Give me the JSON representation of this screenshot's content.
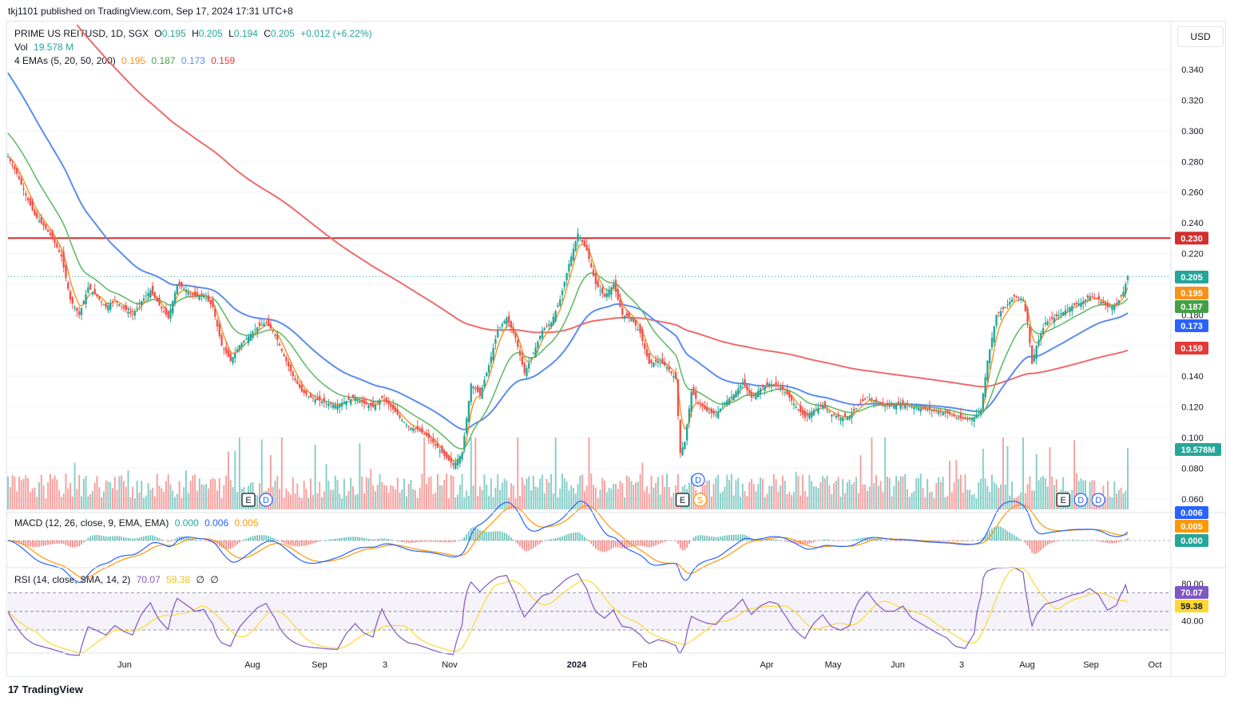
{
  "header": {
    "published": "tkj1101 published on TradingView.com, Sep 17, 2024 17:31 UTC+8"
  },
  "legend": {
    "symbol": "PRIME US REITUSD, 1D, SGX",
    "o_label": "O",
    "o": "0.195",
    "h_label": "H",
    "h": "0.205",
    "l_label": "L",
    "l": "0.194",
    "c_label": "C",
    "c": "0.205",
    "change": "+0.012 (+6.22%)",
    "vol_label": "Vol",
    "vol": "19.578 M",
    "ema_label": "4 EMAs (5, 20, 50, 200)",
    "ema5": "0.195",
    "ema20": "0.187",
    "ema50": "0.173",
    "ema200": "0.159",
    "macd_label": "MACD (12, 26, close, 9, EMA, EMA)",
    "macd_hist": "0.000",
    "macd_line": "0.006",
    "macd_signal": "0.005",
    "rsi_label": "RSI (14, close, SMA, 14, 2)",
    "rsi": "70.07",
    "rsi_ma": "59.38",
    "rsi_extra1": "∅",
    "rsi_extra2": "∅"
  },
  "currency_button": "USD",
  "brand": {
    "logo": "17",
    "name": "TradingView"
  },
  "colors": {
    "up": "#26a69a",
    "down": "#ef5350",
    "ema5": "#f7931a",
    "ema20": "#66bb6a",
    "ema50": "#5b8def",
    "ema200": "#ef6b6b",
    "hline": "#d32f2f",
    "macd": "#2962ff",
    "signal": "#ff9800",
    "rsi": "#7e57c2",
    "rsi_ma": "#fdd835"
  },
  "chart_data": [
    {
      "type": "candlestick",
      "title": "PRIME US REITUSD, 1D, SGX",
      "x_tick_labels": [
        "Jun",
        "Aug",
        "Sep",
        "3",
        "Nov",
        "2024",
        "Feb",
        "Apr",
        "May",
        "Jun",
        "3",
        "Aug",
        "Sep",
        "Oct"
      ],
      "y_tick_labels": [
        "0.340",
        "0.320",
        "0.300",
        "0.280",
        "0.260",
        "0.240",
        "0.220",
        "0.180",
        "0.140",
        "0.120",
        "0.100",
        "0.080",
        "0.060"
      ],
      "ylim": [
        0.052,
        0.352
      ],
      "close_anchors": [
        [
          0,
          0.283
        ],
        [
          4,
          0.272
        ],
        [
          8,
          0.258
        ],
        [
          12,
          0.245
        ],
        [
          16,
          0.238
        ],
        [
          20,
          0.23
        ],
        [
          24,
          0.218
        ],
        [
          28,
          0.19
        ],
        [
          32,
          0.18
        ],
        [
          36,
          0.198
        ],
        [
          40,
          0.192
        ],
        [
          44,
          0.185
        ],
        [
          48,
          0.19
        ],
        [
          52,
          0.184
        ],
        [
          56,
          0.18
        ],
        [
          60,
          0.189
        ],
        [
          64,
          0.196
        ],
        [
          68,
          0.186
        ],
        [
          72,
          0.178
        ],
        [
          76,
          0.2
        ],
        [
          80,
          0.196
        ],
        [
          84,
          0.192
        ],
        [
          88,
          0.193
        ],
        [
          92,
          0.185
        ],
        [
          96,
          0.16
        ],
        [
          100,
          0.15
        ],
        [
          104,
          0.16
        ],
        [
          108,
          0.166
        ],
        [
          112,
          0.172
        ],
        [
          116,
          0.175
        ],
        [
          120,
          0.167
        ],
        [
          124,
          0.153
        ],
        [
          128,
          0.14
        ],
        [
          132,
          0.13
        ],
        [
          136,
          0.126
        ],
        [
          140,
          0.124
        ],
        [
          144,
          0.122
        ],
        [
          148,
          0.121
        ],
        [
          152,
          0.124
        ],
        [
          156,
          0.126
        ],
        [
          160,
          0.122
        ],
        [
          164,
          0.12
        ],
        [
          168,
          0.126
        ],
        [
          172,
          0.12
        ],
        [
          176,
          0.113
        ],
        [
          180,
          0.107
        ],
        [
          184,
          0.105
        ],
        [
          188,
          0.101
        ],
        [
          192,
          0.095
        ],
        [
          196,
          0.088
        ],
        [
          200,
          0.082
        ],
        [
          204,
          0.09
        ],
        [
          208,
          0.135
        ],
        [
          212,
          0.128
        ],
        [
          216,
          0.147
        ],
        [
          220,
          0.17
        ],
        [
          224,
          0.178
        ],
        [
          228,
          0.165
        ],
        [
          232,
          0.142
        ],
        [
          236,
          0.155
        ],
        [
          240,
          0.17
        ],
        [
          244,
          0.175
        ],
        [
          248,
          0.19
        ],
        [
          252,
          0.213
        ],
        [
          256,
          0.233
        ],
        [
          260,
          0.222
        ],
        [
          264,
          0.2
        ],
        [
          268,
          0.192
        ],
        [
          272,
          0.2
        ],
        [
          276,
          0.18
        ],
        [
          280,
          0.178
        ],
        [
          284,
          0.168
        ],
        [
          288,
          0.148
        ],
        [
          292,
          0.15
        ],
        [
          296,
          0.146
        ],
        [
          300,
          0.138
        ],
        [
          302,
          0.09
        ],
        [
          304,
          0.097
        ],
        [
          307,
          0.13
        ],
        [
          310,
          0.123
        ],
        [
          314,
          0.117
        ],
        [
          318,
          0.115
        ],
        [
          322,
          0.123
        ],
        [
          326,
          0.128
        ],
        [
          330,
          0.136
        ],
        [
          334,
          0.126
        ],
        [
          338,
          0.132
        ],
        [
          342,
          0.135
        ],
        [
          346,
          0.134
        ],
        [
          350,
          0.128
        ],
        [
          354,
          0.12
        ],
        [
          358,
          0.113
        ],
        [
          362,
          0.118
        ],
        [
          366,
          0.121
        ],
        [
          370,
          0.115
        ],
        [
          374,
          0.113
        ],
        [
          378,
          0.114
        ],
        [
          382,
          0.121
        ],
        [
          386,
          0.126
        ],
        [
          390,
          0.123
        ],
        [
          394,
          0.121
        ],
        [
          398,
          0.121
        ],
        [
          402,
          0.122
        ],
        [
          406,
          0.12
        ],
        [
          410,
          0.119
        ],
        [
          414,
          0.118
        ],
        [
          418,
          0.117
        ],
        [
          422,
          0.116
        ],
        [
          426,
          0.113
        ],
        [
          430,
          0.112
        ],
        [
          434,
          0.113
        ],
        [
          437,
          0.118
        ],
        [
          440,
          0.15
        ],
        [
          444,
          0.18
        ],
        [
          448,
          0.185
        ],
        [
          452,
          0.192
        ],
        [
          456,
          0.19
        ],
        [
          458,
          0.175
        ],
        [
          460,
          0.148
        ],
        [
          462,
          0.16
        ],
        [
          466,
          0.175
        ],
        [
          470,
          0.178
        ],
        [
          474,
          0.182
        ],
        [
          478,
          0.186
        ],
        [
          482,
          0.188
        ],
        [
          486,
          0.192
        ],
        [
          490,
          0.19
        ],
        [
          494,
          0.185
        ],
        [
          498,
          0.187
        ],
        [
          501,
          0.195
        ],
        [
          503,
          0.205
        ]
      ],
      "ema_series": [
        {
          "name": "EMA 5",
          "last": 0.195
        },
        {
          "name": "EMA 20",
          "last": 0.187
        },
        {
          "name": "EMA 50",
          "last": 0.173
        },
        {
          "name": "EMA 200",
          "last": 0.159
        }
      ],
      "horizontal_line": 0.23,
      "last_close": 0.205,
      "price_labels": [
        "0.230",
        "0.205",
        "0.195",
        "0.187",
        "0.173",
        "0.159"
      ],
      "volume_last_label": "19.578M",
      "event_markers": [
        {
          "bar": 108,
          "labels": [
            "E",
            "D"
          ]
        },
        {
          "bar": 303,
          "labels": [
            "E",
            "S"
          ]
        },
        {
          "bar": 310,
          "labels": [
            "D"
          ]
        },
        {
          "bar": 474,
          "labels": [
            "E",
            "D",
            "D"
          ]
        }
      ]
    },
    {
      "type": "line",
      "title": "MACD (12, 26, close, 9, EMA, EMA)",
      "series": [
        {
          "name": "MACD",
          "last": 0.006
        },
        {
          "name": "Signal",
          "last": 0.005
        },
        {
          "name": "Histogram",
          "last": 0.0
        }
      ],
      "price_labels": [
        "0.006",
        "0.005",
        "0.000"
      ]
    },
    {
      "type": "line",
      "title": "RSI (14, close, SMA, 14, 2)",
      "ylim": [
        0,
        100
      ],
      "y_tick_labels": [
        "80.00",
        "40.00"
      ],
      "series": [
        {
          "name": "RSI",
          "last": 70.07
        },
        {
          "name": "RSI-based MA",
          "last": 59.38
        }
      ],
      "bands": [
        70,
        50,
        30
      ],
      "price_labels": [
        "70.07",
        "59.38"
      ]
    }
  ]
}
